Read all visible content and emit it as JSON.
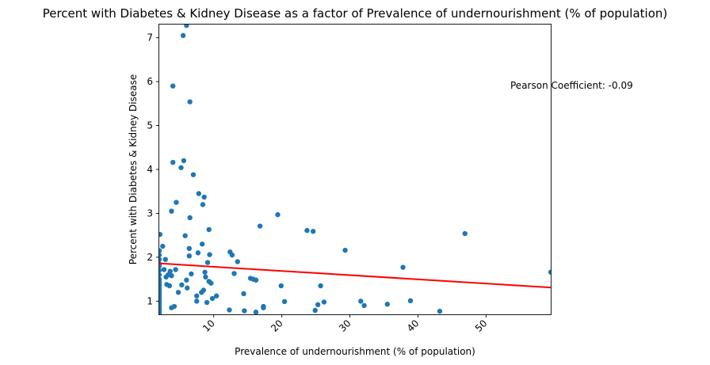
{
  "chart_data": {
    "type": "scatter",
    "title": "Percent with Diabetes & Kidney Disease as a factor of Prevalence of undernourishment (% of population)",
    "xlabel": "Prevalence of undernourishment (% of population)",
    "ylabel": "Percent with Diabetes & Kidney Disease",
    "xlim": [
      2.0,
      59.5
    ],
    "ylim": [
      0.7,
      7.3
    ],
    "xticks": [
      10,
      20,
      30,
      40,
      50
    ],
    "yticks": [
      1,
      2,
      3,
      4,
      5,
      6,
      7
    ],
    "annotation": "Pearson Coefficient: -0.09",
    "point_color": "#1f77b4",
    "line_color": "#ff0000",
    "grid": false,
    "series": [
      {
        "type": "scatter",
        "points": [
          [
            2.0,
            2.15
          ],
          [
            2.0,
            2.05
          ],
          [
            2.0,
            1.95
          ],
          [
            2.0,
            1.85
          ],
          [
            2.0,
            1.8
          ],
          [
            2.0,
            1.7
          ],
          [
            2.0,
            1.6
          ],
          [
            2.0,
            1.5
          ],
          [
            2.0,
            1.45
          ],
          [
            2.0,
            1.4
          ],
          [
            2.0,
            1.35
          ],
          [
            2.0,
            1.3
          ],
          [
            2.0,
            1.25
          ],
          [
            2.0,
            1.2
          ],
          [
            2.0,
            1.15
          ],
          [
            2.0,
            1.1
          ],
          [
            2.0,
            1.05
          ],
          [
            2.0,
            1.0
          ],
          [
            2.0,
            0.95
          ],
          [
            2.0,
            0.9
          ],
          [
            2.0,
            0.85
          ],
          [
            2.0,
            0.8
          ],
          [
            2.0,
            0.75
          ],
          [
            2.0,
            0.72
          ],
          [
            2.1,
            2.52
          ],
          [
            2.5,
            2.25
          ],
          [
            2.7,
            1.72
          ],
          [
            2.9,
            1.95
          ],
          [
            3.0,
            1.55
          ],
          [
            3.1,
            1.38
          ],
          [
            3.3,
            1.6
          ],
          [
            3.6,
            1.68
          ],
          [
            3.5,
            1.35
          ],
          [
            3.8,
            3.05
          ],
          [
            3.8,
            1.58
          ],
          [
            3.8,
            0.85
          ],
          [
            4.0,
            4.16
          ],
          [
            4.0,
            5.9
          ],
          [
            4.2,
            0.88
          ],
          [
            4.4,
            1.72
          ],
          [
            4.5,
            3.25
          ],
          [
            4.8,
            1.2
          ],
          [
            5.2,
            4.04
          ],
          [
            5.3,
            1.37
          ],
          [
            5.5,
            7.05
          ],
          [
            5.6,
            4.2
          ],
          [
            5.8,
            2.49
          ],
          [
            6.0,
            7.28
          ],
          [
            6.0,
            1.48
          ],
          [
            6.1,
            1.3
          ],
          [
            6.4,
            2.2
          ],
          [
            6.4,
            2.03
          ],
          [
            6.5,
            2.9
          ],
          [
            6.5,
            5.54
          ],
          [
            6.7,
            1.62
          ],
          [
            7.0,
            3.88
          ],
          [
            7.5,
            1.12
          ],
          [
            7.5,
            1.0
          ],
          [
            7.7,
            2.1
          ],
          [
            7.8,
            3.45
          ],
          [
            8.2,
            1.2
          ],
          [
            8.3,
            2.3
          ],
          [
            8.4,
            3.2
          ],
          [
            8.5,
            1.25
          ],
          [
            8.6,
            3.37
          ],
          [
            8.7,
            1.66
          ],
          [
            8.8,
            1.55
          ],
          [
            9.0,
            0.97
          ],
          [
            9.1,
            1.88
          ],
          [
            9.3,
            2.63
          ],
          [
            9.3,
            1.45
          ],
          [
            9.4,
            2.06
          ],
          [
            9.6,
            1.41
          ],
          [
            9.8,
            1.06
          ],
          [
            10.4,
            1.12
          ],
          [
            12.3,
            0.8
          ],
          [
            12.4,
            2.12
          ],
          [
            12.7,
            2.05
          ],
          [
            13.0,
            1.63
          ],
          [
            13.5,
            1.9
          ],
          [
            14.4,
            1.17
          ],
          [
            14.5,
            0.78
          ],
          [
            15.4,
            1.52
          ],
          [
            15.8,
            1.5
          ],
          [
            16.2,
            0.75
          ],
          [
            16.2,
            1.48
          ],
          [
            16.8,
            2.71
          ],
          [
            17.3,
            0.88
          ],
          [
            17.3,
            0.85
          ],
          [
            19.4,
            2.97
          ],
          [
            19.9,
            1.35
          ],
          [
            20.4,
            0.99
          ],
          [
            23.7,
            2.61
          ],
          [
            24.6,
            2.59
          ],
          [
            24.9,
            0.79
          ],
          [
            25.3,
            0.92
          ],
          [
            25.7,
            1.35
          ],
          [
            26.2,
            0.98
          ],
          [
            29.3,
            2.16
          ],
          [
            31.6,
            1.0
          ],
          [
            32.1,
            0.9
          ],
          [
            35.5,
            0.93
          ],
          [
            37.8,
            1.77
          ],
          [
            38.9,
            1.01
          ],
          [
            43.2,
            0.77
          ],
          [
            46.9,
            2.54
          ],
          [
            59.5,
            1.66
          ]
        ]
      },
      {
        "type": "line",
        "points": [
          [
            2.0,
            1.86
          ],
          [
            59.5,
            1.31
          ]
        ]
      }
    ]
  }
}
